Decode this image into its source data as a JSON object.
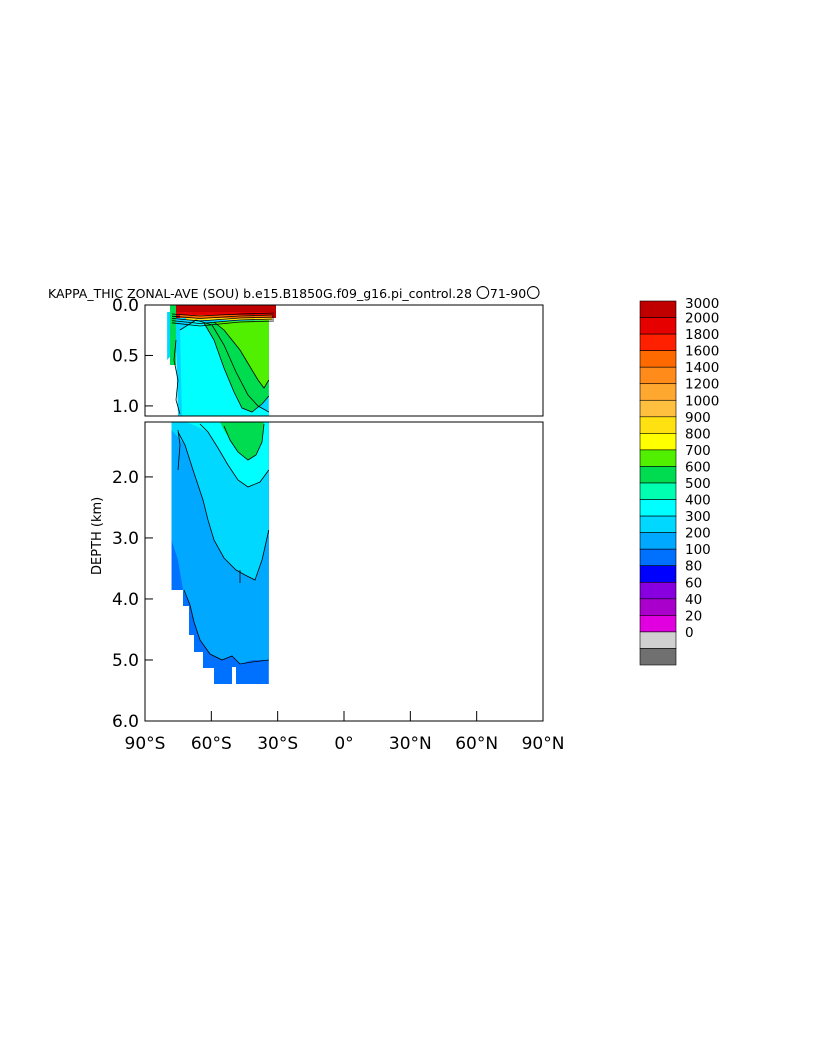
{
  "chart_data": {
    "type": "heatmap",
    "title": "KAPPA_THIC ZONAL-AVE (SOU) b.e15.B1850G.f09_g16.pi_control.28 〇1-90〇",
    "title_text": "KAPPA_THIC ZONAL-AVE (SOU) b.e15.B1850G.f09_g16.pi_control.28",
    "title_years": "71-90",
    "xlabel": "",
    "ylabel": "DEPTH (km)",
    "x_ticks": [
      "90°S",
      "60°S",
      "30°S",
      "0°",
      "30°N",
      "60°N",
      "90°N"
    ],
    "x_tick_values": [
      -90,
      -60,
      -30,
      0,
      30,
      60,
      90
    ],
    "xlim": [
      -90,
      90
    ],
    "upper_panel": {
      "ylim": [
        0,
        1.1
      ],
      "y_ticks": [
        "0.0",
        "0.5",
        "1.0"
      ],
      "y_tick_values": [
        0,
        0.5,
        1.0
      ]
    },
    "lower_panel": {
      "ylim": [
        1.1,
        6.0
      ],
      "y_ticks": [
        "2.0",
        "3.0",
        "4.0",
        "5.0",
        "6.0"
      ],
      "y_tick_values": [
        2.0,
        3.0,
        4.0,
        5.0,
        6.0
      ]
    },
    "data_extent": {
      "lat": [
        -78,
        -34
      ],
      "depth_km": [
        0,
        5.4
      ]
    },
    "colorbar": {
      "levels": [
        "3000",
        "2000",
        "1800",
        "1600",
        "1400",
        "1200",
        "1000",
        "900",
        "800",
        "700",
        "600",
        "500",
        "400",
        "300",
        "200",
        "100",
        "80",
        "60",
        "40",
        "20",
        "0"
      ],
      "colors": [
        "#c00000",
        "#e60000",
        "#ff2000",
        "#ff6a00",
        "#ff8c1a",
        "#ffa830",
        "#ffc040",
        "#ffe010",
        "#ffff00",
        "#50f000",
        "#00dc50",
        "#00ffb0",
        "#00ffff",
        "#00d8ff",
        "#00a8ff",
        "#0070ff",
        "#0000ff",
        "#8800e0",
        "#aa00cc",
        "#e000e0",
        "#d0d0d0",
        "#707070"
      ]
    },
    "regions": [
      {
        "label": "surface",
        "value_range": [
          1000,
          3000
        ],
        "depth_km": [
          0,
          0.15
        ]
      },
      {
        "label": "upper-green",
        "value_range": [
          600,
          800
        ],
        "lat": [
          -62,
          -34
        ],
        "depth_km": [
          0.1,
          1.3
        ]
      },
      {
        "label": "cyan-core",
        "value_range": [
          400,
          500
        ],
        "lat": [
          -70,
          -34
        ],
        "depth_km": [
          0.2,
          2.2
        ]
      },
      {
        "label": "light-blue",
        "value_range": [
          300,
          400
        ],
        "lat": [
          -76,
          -34
        ],
        "depth_km": [
          1.1,
          4.5
        ]
      },
      {
        "label": "mid-blue",
        "value_range": [
          200,
          300
        ],
        "lat": [
          -78,
          -34
        ],
        "depth_km": [
          2.5,
          5.1
        ]
      },
      {
        "label": "deep-blue",
        "value_range": [
          100,
          200
        ],
        "lat": [
          -62,
          -34
        ],
        "depth_km": [
          5.0,
          5.4
        ]
      }
    ]
  }
}
